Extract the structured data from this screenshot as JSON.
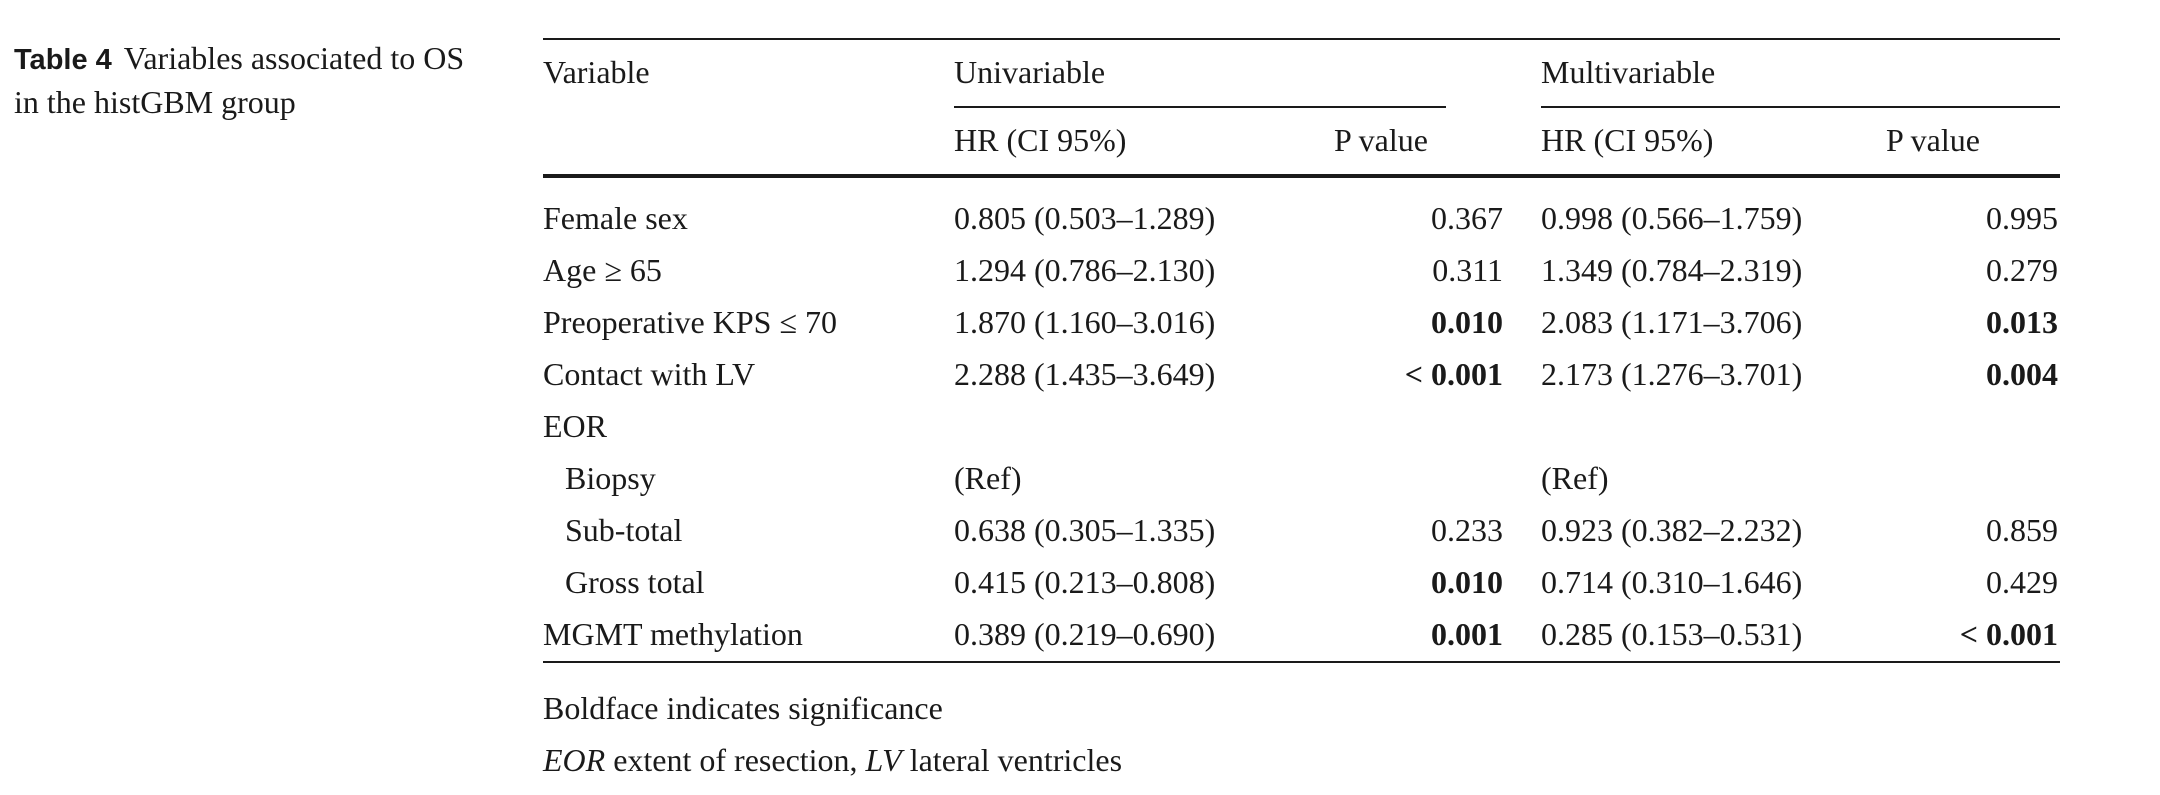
{
  "caption": {
    "label": "Table 4",
    "text": "Variables associated to OS in the histGBM group"
  },
  "headers": {
    "variable": "Variable",
    "univariable": "Univariable",
    "multivariable": "Multivariable",
    "hr": "HR (CI 95%)",
    "pvalue": "P value"
  },
  "rows": [
    {
      "variable": "Female sex",
      "indent": false,
      "uni_hr": "0.805 (0.503–1.289)",
      "uni_p": "0.367",
      "uni_p_bold": false,
      "multi_hr": "0.998 (0.566–1.759)",
      "multi_p": "0.995",
      "multi_p_bold": false
    },
    {
      "variable": "Age ≥ 65",
      "indent": false,
      "uni_hr": "1.294 (0.786–2.130)",
      "uni_p": "0.311",
      "uni_p_bold": false,
      "multi_hr": "1.349 (0.784–2.319)",
      "multi_p": "0.279",
      "multi_p_bold": false
    },
    {
      "variable": "Preoperative KPS ≤ 70",
      "indent": false,
      "uni_hr": "1.870 (1.160–3.016)",
      "uni_p": "0.010",
      "uni_p_bold": true,
      "multi_hr": "2.083 (1.171–3.706)",
      "multi_p": "0.013",
      "multi_p_bold": true
    },
    {
      "variable": "Contact with LV",
      "indent": false,
      "uni_hr": "2.288 (1.435–3.649)",
      "uni_p": "< 0.001",
      "uni_p_bold": true,
      "multi_hr": "2.173 (1.276–3.701)",
      "multi_p": "0.004",
      "multi_p_bold": true
    },
    {
      "variable": "EOR",
      "indent": false,
      "uni_hr": "",
      "uni_p": "",
      "uni_p_bold": false,
      "multi_hr": "",
      "multi_p": "",
      "multi_p_bold": false
    },
    {
      "variable": "Biopsy",
      "indent": true,
      "uni_hr": "(Ref)",
      "uni_p": "",
      "uni_p_bold": false,
      "multi_hr": "(Ref)",
      "multi_p": "",
      "multi_p_bold": false
    },
    {
      "variable": "Sub-total",
      "indent": true,
      "uni_hr": "0.638 (0.305–1.335)",
      "uni_p": "0.233",
      "uni_p_bold": false,
      "multi_hr": "0.923 (0.382–2.232)",
      "multi_p": "0.859",
      "multi_p_bold": false
    },
    {
      "variable": "Gross total",
      "indent": true,
      "uni_hr": "0.415 (0.213–0.808)",
      "uni_p": "0.010",
      "uni_p_bold": true,
      "multi_hr": "0.714 (0.310–1.646)",
      "multi_p": "0.429",
      "multi_p_bold": false
    },
    {
      "variable": "MGMT methylation",
      "indent": false,
      "uni_hr": "0.389 (0.219–0.690)",
      "uni_p": "0.001",
      "uni_p_bold": true,
      "multi_hr": "0.285 (0.153–0.531)",
      "multi_p": "< 0.001",
      "multi_p_bold": true
    }
  ],
  "footnotes": {
    "significance": "Boldface indicates significance",
    "abbr1_term": "EOR",
    "abbr1_def": " extent of resection, ",
    "abbr2_term": "LV",
    "abbr2_def": " lateral ventricles"
  }
}
